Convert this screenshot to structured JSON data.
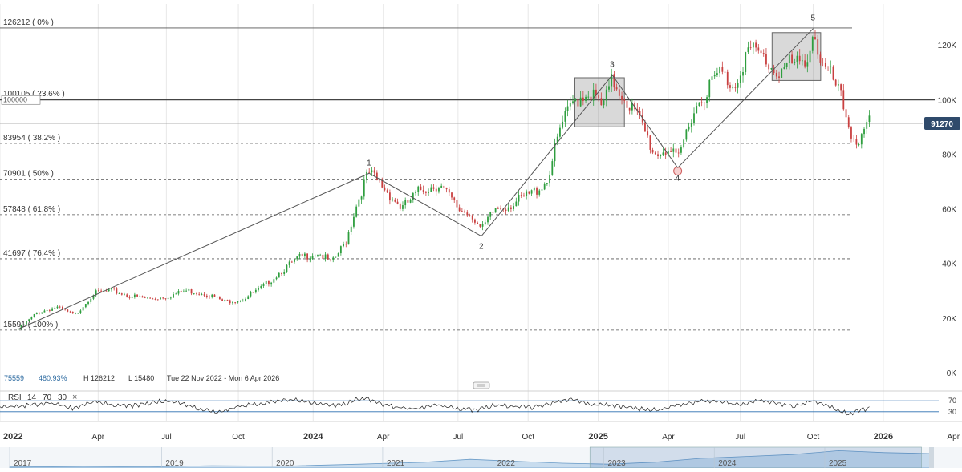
{
  "chart_data": {
    "type": "candlestick",
    "y_axis": {
      "ticks": [
        0,
        20000,
        40000,
        60000,
        80000,
        100000,
        120000
      ],
      "tick_labels": [
        "0K",
        "20K",
        "40K",
        "60K",
        "80K",
        "100K",
        "120K"
      ],
      "ylim": [
        0,
        135000
      ]
    },
    "x_axis": {
      "tick_labels": [
        "2022",
        "Apr",
        "Jul",
        "Oct",
        "2024",
        "Apr",
        "Jul",
        "Oct",
        "2025",
        "Apr",
        "Jul",
        "Oct",
        "2026",
        "Apr"
      ],
      "bold_labels": [
        "2022",
        "2024",
        "2025",
        "2026"
      ]
    },
    "last_price": {
      "value": 91270,
      "label": "91270"
    },
    "reference_line": {
      "value": 100000,
      "label": "100000"
    },
    "fib_levels": [
      {
        "value": 126212,
        "label": "126212 ( 0% )"
      },
      {
        "value": 100105,
        "label": "100105 ( 23.6% )"
      },
      {
        "value": 83954,
        "label": "83954 ( 38.2% )"
      },
      {
        "value": 70901,
        "label": "70901 ( 50% )"
      },
      {
        "value": 57848,
        "label": "57848 ( 61.8% )"
      },
      {
        "value": 41697,
        "label": "41697 ( 76.4% )"
      },
      {
        "value": 15591,
        "label": "15591 ( 100% )"
      }
    ],
    "wave_labels": [
      "1",
      "2",
      "3",
      "4",
      "5"
    ],
    "wave_points": [
      {
        "t": 0.02,
        "v": 16000
      },
      {
        "t": 0.395,
        "v": 73000
      },
      {
        "t": 0.515,
        "v": 50000
      },
      {
        "t": 0.655,
        "v": 109000
      },
      {
        "t": 0.725,
        "v": 75000
      },
      {
        "t": 0.87,
        "v": 126000
      }
    ],
    "price_path": [
      [
        0.02,
        16000
      ],
      [
        0.04,
        22000
      ],
      [
        0.06,
        24000
      ],
      [
        0.08,
        21000
      ],
      [
        0.1,
        29000
      ],
      [
        0.12,
        30000
      ],
      [
        0.14,
        28000
      ],
      [
        0.16,
        27000
      ],
      [
        0.18,
        28000
      ],
      [
        0.2,
        30000
      ],
      [
        0.22,
        29000
      ],
      [
        0.24,
        26000
      ],
      [
        0.26,
        27000
      ],
      [
        0.28,
        31000
      ],
      [
        0.3,
        37000
      ],
      [
        0.32,
        42000
      ],
      [
        0.34,
        44000
      ],
      [
        0.355,
        40000
      ],
      [
        0.37,
        48000
      ],
      [
        0.38,
        60000
      ],
      [
        0.39,
        70000
      ],
      [
        0.395,
        73000
      ],
      [
        0.41,
        68000
      ],
      [
        0.43,
        60000
      ],
      [
        0.45,
        67000
      ],
      [
        0.47,
        69000
      ],
      [
        0.49,
        60000
      ],
      [
        0.505,
        58000
      ],
      [
        0.515,
        52000
      ],
      [
        0.53,
        60000
      ],
      [
        0.55,
        62000
      ],
      [
        0.57,
        66000
      ],
      [
        0.585,
        70000
      ],
      [
        0.6,
        90000
      ],
      [
        0.615,
        100000
      ],
      [
        0.63,
        103000
      ],
      [
        0.645,
        97000
      ],
      [
        0.655,
        107000
      ],
      [
        0.67,
        100000
      ],
      [
        0.685,
        92000
      ],
      [
        0.7,
        80000
      ],
      [
        0.715,
        82000
      ],
      [
        0.725,
        77000
      ],
      [
        0.74,
        95000
      ],
      [
        0.755,
        103000
      ],
      [
        0.77,
        110000
      ],
      [
        0.785,
        105000
      ],
      [
        0.8,
        118000
      ],
      [
        0.815,
        116000
      ],
      [
        0.83,
        110000
      ],
      [
        0.845,
        113000
      ],
      [
        0.86,
        112000
      ],
      [
        0.87,
        125000
      ],
      [
        0.88,
        112000
      ],
      [
        0.89,
        108000
      ],
      [
        0.9,
        100000
      ],
      [
        0.91,
        88000
      ],
      [
        0.92,
        84000
      ],
      [
        0.93,
        91270
      ]
    ],
    "boxes": [
      {
        "t0": 0.615,
        "t1": 0.668,
        "v0": 90000,
        "v1": 108000
      },
      {
        "t0": 0.826,
        "t1": 0.878,
        "v0": 107000,
        "v1": 124500
      }
    ],
    "stats": {
      "price": "75559",
      "change": "480.93%",
      "high": "H 126212",
      "low": "L 15480",
      "range": "Tue 22 Nov 2022 - Mon 6 Apr 2026"
    },
    "rsi": {
      "label": "RSI",
      "period": "14",
      "upper": "70",
      "lower": "30",
      "ylim": [
        0,
        100
      ],
      "close_icon": "close-icon",
      "path": [
        [
          0.0,
          48
        ],
        [
          0.02,
          52
        ],
        [
          0.04,
          55
        ],
        [
          0.06,
          62
        ],
        [
          0.08,
          40
        ],
        [
          0.1,
          66
        ],
        [
          0.12,
          58
        ],
        [
          0.14,
          50
        ],
        [
          0.16,
          62
        ],
        [
          0.18,
          72
        ],
        [
          0.2,
          55
        ],
        [
          0.22,
          35
        ],
        [
          0.24,
          30
        ],
        [
          0.26,
          52
        ],
        [
          0.28,
          60
        ],
        [
          0.3,
          68
        ],
        [
          0.32,
          74
        ],
        [
          0.34,
          58
        ],
        [
          0.36,
          50
        ],
        [
          0.38,
          74
        ],
        [
          0.395,
          76
        ],
        [
          0.41,
          55
        ],
        [
          0.43,
          45
        ],
        [
          0.45,
          40
        ],
        [
          0.47,
          56
        ],
        [
          0.49,
          40
        ],
        [
          0.51,
          35
        ],
        [
          0.53,
          55
        ],
        [
          0.55,
          50
        ],
        [
          0.57,
          45
        ],
        [
          0.59,
          62
        ],
        [
          0.61,
          75
        ],
        [
          0.63,
          60
        ],
        [
          0.65,
          55
        ],
        [
          0.67,
          45
        ],
        [
          0.69,
          38
        ],
        [
          0.71,
          40
        ],
        [
          0.73,
          58
        ],
        [
          0.75,
          70
        ],
        [
          0.77,
          65
        ],
        [
          0.79,
          56
        ],
        [
          0.81,
          72
        ],
        [
          0.83,
          60
        ],
        [
          0.85,
          52
        ],
        [
          0.87,
          70
        ],
        [
          0.89,
          45
        ],
        [
          0.9,
          30
        ],
        [
          0.91,
          22
        ],
        [
          0.92,
          35
        ],
        [
          0.93,
          42
        ]
      ]
    },
    "navigator": {
      "year_labels": [
        "2017",
        "2019",
        "2020",
        "2021",
        "2022",
        "2023",
        "2024",
        "2025"
      ],
      "area": [
        [
          0.0,
          0.05
        ],
        [
          0.08,
          0.08
        ],
        [
          0.15,
          0.06
        ],
        [
          0.22,
          0.12
        ],
        [
          0.3,
          0.1
        ],
        [
          0.38,
          0.2
        ],
        [
          0.45,
          0.3
        ],
        [
          0.5,
          0.45
        ],
        [
          0.55,
          0.35
        ],
        [
          0.6,
          0.25
        ],
        [
          0.65,
          0.2
        ],
        [
          0.7,
          0.3
        ],
        [
          0.75,
          0.5
        ],
        [
          0.8,
          0.6
        ],
        [
          0.85,
          0.7
        ],
        [
          0.9,
          0.9
        ],
        [
          0.95,
          0.8
        ],
        [
          1.0,
          0.75
        ]
      ],
      "selection": [
        0.63,
        0.99
      ]
    },
    "panel_handle_icon": "grip-icon"
  }
}
